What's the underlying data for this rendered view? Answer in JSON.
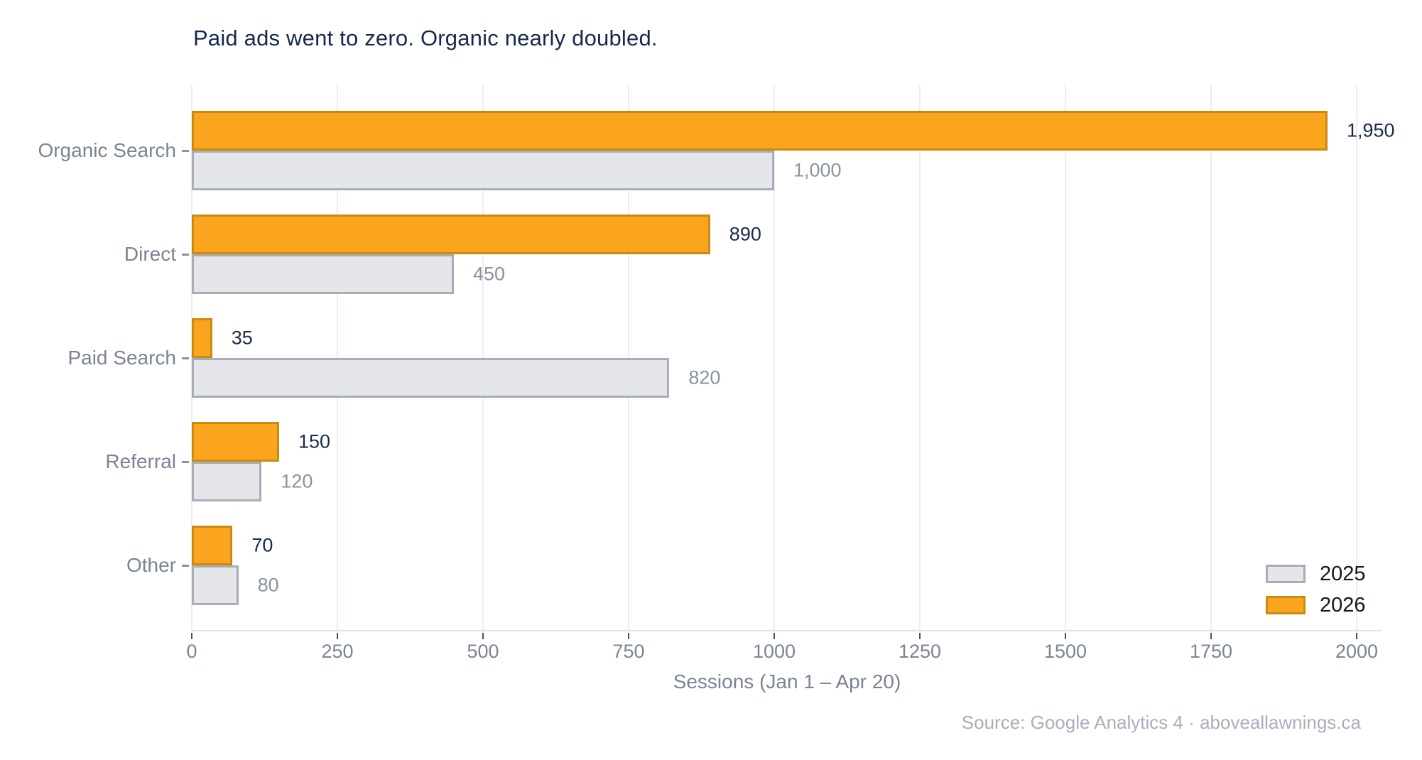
{
  "chart_data": {
    "type": "bar",
    "orientation": "horizontal",
    "title": "Paid ads went to zero. Organic nearly doubled.",
    "xlabel": "Sessions (Jan 1 – Apr 20)",
    "categories": [
      "Organic Search",
      "Direct",
      "Paid Search",
      "Referral",
      "Other"
    ],
    "series": [
      {
        "name": "2025",
        "values": [
          1000,
          450,
          820,
          120,
          80
        ],
        "value_labels": [
          "1,000",
          "450",
          "820",
          "120",
          "80"
        ],
        "fill": "#E5E6EA",
        "border": "#A8ADB8",
        "label_color": "#8B92A0"
      },
      {
        "name": "2026",
        "values": [
          1950,
          890,
          35,
          150,
          70
        ],
        "value_labels": [
          "1,950",
          "890",
          "35",
          "150",
          "70"
        ],
        "fill": "#FBA41E",
        "border": "#CB8A10",
        "label_color": "#1B2A4C"
      }
    ],
    "x_ticks": [
      0,
      250,
      500,
      750,
      1000,
      1250,
      1500,
      1750,
      2000
    ],
    "xlim": [
      0,
      2000
    ],
    "grid": "vertical",
    "legend_position": "bottom-right"
  },
  "footer": {
    "source": "Source: Google Analytics 4 · aboveallawnings.ca"
  },
  "colors": {
    "title": "#16294D",
    "axis_text": "#7B8494",
    "grid": "#ECEDEF",
    "source_text": "#A9AEBC"
  }
}
